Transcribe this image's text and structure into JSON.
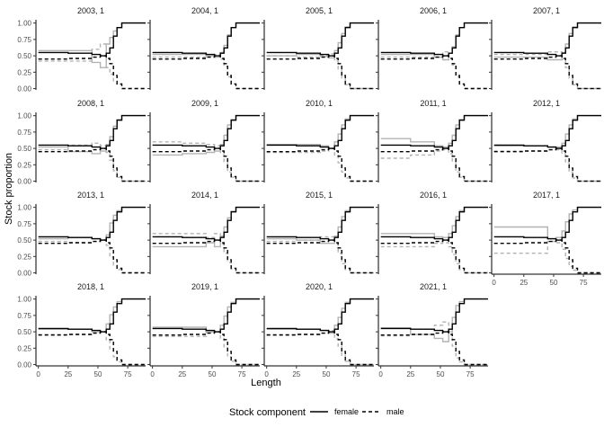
{
  "chart_data": {
    "type": "line",
    "title": "",
    "xlabel": "Length",
    "ylabel": "Stock proportion",
    "xlim": [
      -2,
      90
    ],
    "ylim": [
      -0.02,
      1.05
    ],
    "x_ticks": [
      0,
      25,
      50,
      75
    ],
    "y_ticks": [
      0.0,
      0.25,
      0.5,
      0.75,
      1.0
    ],
    "y_tick_labels": [
      "0.00",
      "0.25",
      "0.50",
      "0.75",
      "1.00"
    ],
    "grid": false,
    "legend": {
      "title": "Stock component",
      "placement": "bottom",
      "entries": [
        {
          "name": "female",
          "linestyle": "solid"
        },
        {
          "name": "male",
          "linestyle": "dashed"
        }
      ]
    },
    "line_colors": {
      "fitted": "#000000",
      "observed": "#b3b3b3"
    },
    "fitted": {
      "female": {
        "x": [
          0,
          25,
          45,
          52,
          57,
          60,
          63,
          66,
          70,
          90
        ],
        "y": [
          0.55,
          0.54,
          0.52,
          0.5,
          0.54,
          0.62,
          0.8,
          0.93,
          1.0,
          1.0
        ]
      },
      "male": {
        "x": [
          0,
          25,
          45,
          52,
          57,
          60,
          63,
          66,
          70,
          90
        ],
        "y": [
          0.45,
          0.46,
          0.48,
          0.5,
          0.46,
          0.38,
          0.2,
          0.07,
          0.0,
          0.0
        ]
      }
    },
    "panels": [
      {
        "label": "2003, 1",
        "observed_female": [
          0.58,
          0.58,
          0.4,
          0.32,
          0.68,
          0.78,
          0.88,
          0.93,
          1.0,
          1.0
        ]
      },
      {
        "label": "2004, 1",
        "observed_female": [
          0.52,
          0.52,
          0.5,
          0.48,
          0.55,
          0.66,
          0.82,
          0.93,
          1.0,
          1.0
        ]
      },
      {
        "label": "2005, 1",
        "observed_female": [
          0.5,
          0.52,
          0.49,
          0.47,
          0.58,
          0.7,
          0.84,
          0.94,
          1.0,
          1.0
        ]
      },
      {
        "label": "2006, 1",
        "observed_female": [
          0.52,
          0.52,
          0.48,
          0.44,
          0.54,
          0.64,
          0.82,
          0.93,
          1.0,
          1.0
        ]
      },
      {
        "label": "2007, 1",
        "observed_female": [
          0.48,
          0.48,
          0.44,
          0.44,
          0.55,
          0.68,
          0.84,
          0.94,
          1.0,
          1.0
        ]
      },
      {
        "label": "2008, 1",
        "observed_female": [
          0.52,
          0.45,
          0.42,
          0.46,
          0.56,
          0.68,
          0.84,
          0.94,
          1.0,
          1.0
        ]
      },
      {
        "label": "2009, 1",
        "observed_female": [
          0.4,
          0.42,
          0.44,
          0.46,
          0.56,
          0.7,
          0.86,
          0.94,
          1.0,
          1.0
        ]
      },
      {
        "label": "2010, 1",
        "observed_female": [
          0.56,
          0.56,
          0.54,
          0.5,
          0.6,
          0.72,
          0.86,
          0.95,
          1.0,
          1.0
        ]
      },
      {
        "label": "2011, 1",
        "observed_female": [
          0.65,
          0.6,
          0.54,
          0.52,
          0.58,
          0.7,
          0.86,
          0.94,
          1.0,
          1.0
        ]
      },
      {
        "label": "2012, 1",
        "observed_female": [
          0.54,
          0.54,
          0.52,
          0.52,
          0.58,
          0.72,
          0.86,
          0.95,
          1.0,
          1.0
        ]
      },
      {
        "label": "2013, 1",
        "observed_female": [
          0.52,
          0.54,
          0.52,
          0.5,
          0.58,
          0.76,
          0.88,
          0.95,
          1.0,
          1.0
        ]
      },
      {
        "label": "2014, 1",
        "observed_female": [
          0.4,
          0.4,
          0.46,
          0.4,
          0.56,
          0.7,
          0.84,
          0.94,
          1.0,
          1.0
        ]
      },
      {
        "label": "2015, 1",
        "observed_female": [
          0.52,
          0.5,
          0.45,
          0.45,
          0.56,
          0.7,
          0.86,
          0.95,
          1.0,
          1.0
        ]
      },
      {
        "label": "2016, 1",
        "observed_female": [
          0.6,
          0.6,
          0.55,
          0.54,
          0.6,
          0.72,
          0.86,
          0.95,
          1.0,
          1.0
        ]
      },
      {
        "label": "2017, 1",
        "observed_female": [
          0.7,
          0.7,
          0.52,
          0.54,
          0.64,
          0.78,
          0.9,
          0.96,
          1.0,
          1.0
        ]
      },
      {
        "label": "2018, 1",
        "observed_female": [
          0.54,
          0.54,
          0.5,
          0.5,
          0.62,
          0.76,
          0.88,
          0.96,
          1.0,
          1.0
        ]
      },
      {
        "label": "2019, 1",
        "observed_female": [
          0.57,
          0.57,
          0.5,
          0.5,
          0.6,
          0.74,
          0.88,
          0.95,
          1.0,
          1.0
        ]
      },
      {
        "label": "2020, 1",
        "observed_female": [
          0.54,
          0.54,
          0.52,
          0.48,
          0.6,
          0.72,
          0.86,
          0.95,
          1.0,
          1.0
        ]
      },
      {
        "label": "2021, 1",
        "observed_female": [
          0.56,
          0.46,
          0.4,
          0.35,
          0.5,
          0.72,
          0.9,
          0.96,
          1.0,
          1.0
        ]
      }
    ]
  }
}
